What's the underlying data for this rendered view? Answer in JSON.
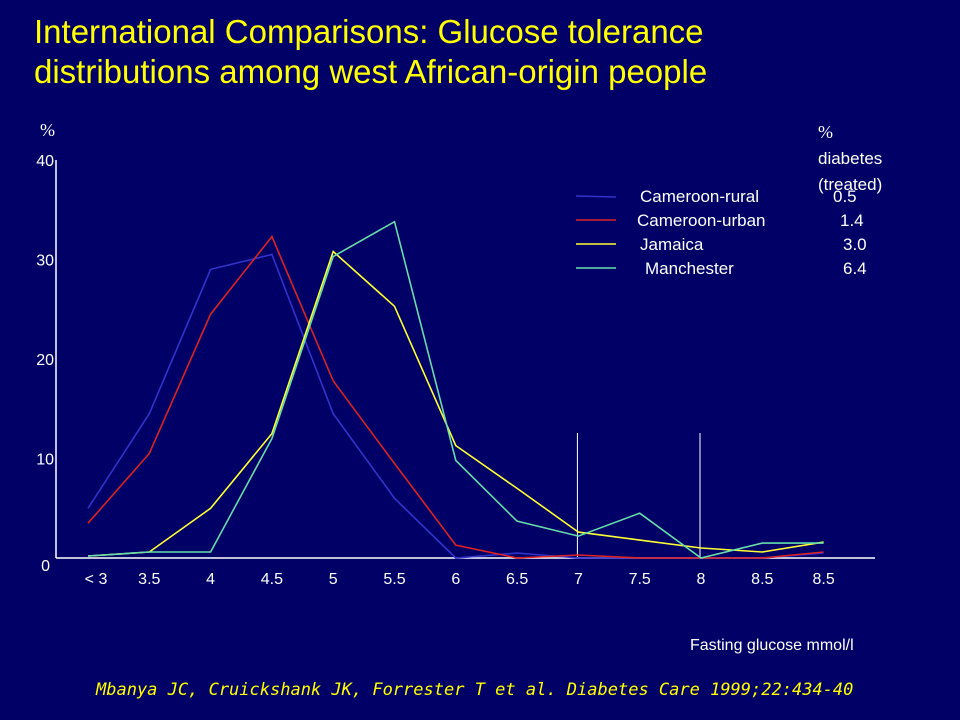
{
  "slide": {
    "title_line1": "International Comparisons: Glucose tolerance",
    "title_line2": "distributions among west African-origin people",
    "citation": "Mbanya JC, Cruickshank JK, Forrester T et al. Diabetes Care 1999;22:434-40"
  },
  "chart_data": {
    "type": "line",
    "ylabel": "%",
    "xlabel": "Fasting glucose mmol/l",
    "ylim": [
      0,
      40
    ],
    "yticks": [
      "0",
      "10",
      "20",
      "30",
      "40"
    ],
    "categories": [
      "< 3",
      "3.5",
      "4",
      "4.5",
      "5",
      "5.5",
      "6",
      "6.5",
      "7",
      "7.5",
      "8",
      "8.5",
      "8.5"
    ],
    "legend_header": [
      "%",
      "diabetes",
      "(treated)"
    ],
    "series": [
      {
        "name": "Cameroon-rural",
        "diabetes": "0.5",
        "color": "#3333cc",
        "values": [
          5.0,
          14.5,
          29.0,
          30.5,
          14.5,
          6.0,
          0.0,
          0.5,
          0.0,
          0.0,
          0.0,
          0.0,
          0.5
        ]
      },
      {
        "name": "Cameroon-urban",
        "diabetes": "1.4",
        "color": "#dd2222",
        "values": [
          3.5,
          10.5,
          24.5,
          32.3,
          17.8,
          9.5,
          1.3,
          0.0,
          0.3,
          0.0,
          0.0,
          0.0,
          0.6
        ]
      },
      {
        "name": "Jamaica",
        "diabetes": "3.0",
        "color": "#ffff33",
        "values": [
          0.2,
          0.6,
          5.0,
          12.5,
          30.8,
          25.3,
          11.3,
          7.0,
          2.6,
          1.8,
          1.0,
          0.6,
          1.6
        ]
      },
      {
        "name": "Manchester",
        "diabetes": "6.4",
        "color": "#66ddaa",
        "values": [
          0.2,
          0.6,
          0.6,
          12.0,
          30.3,
          33.8,
          9.8,
          3.7,
          2.2,
          4.5,
          0.0,
          1.5,
          1.5
        ]
      }
    ],
    "reference_lines": [
      7,
      8
    ],
    "grid": false,
    "legend_position": "top-right"
  }
}
